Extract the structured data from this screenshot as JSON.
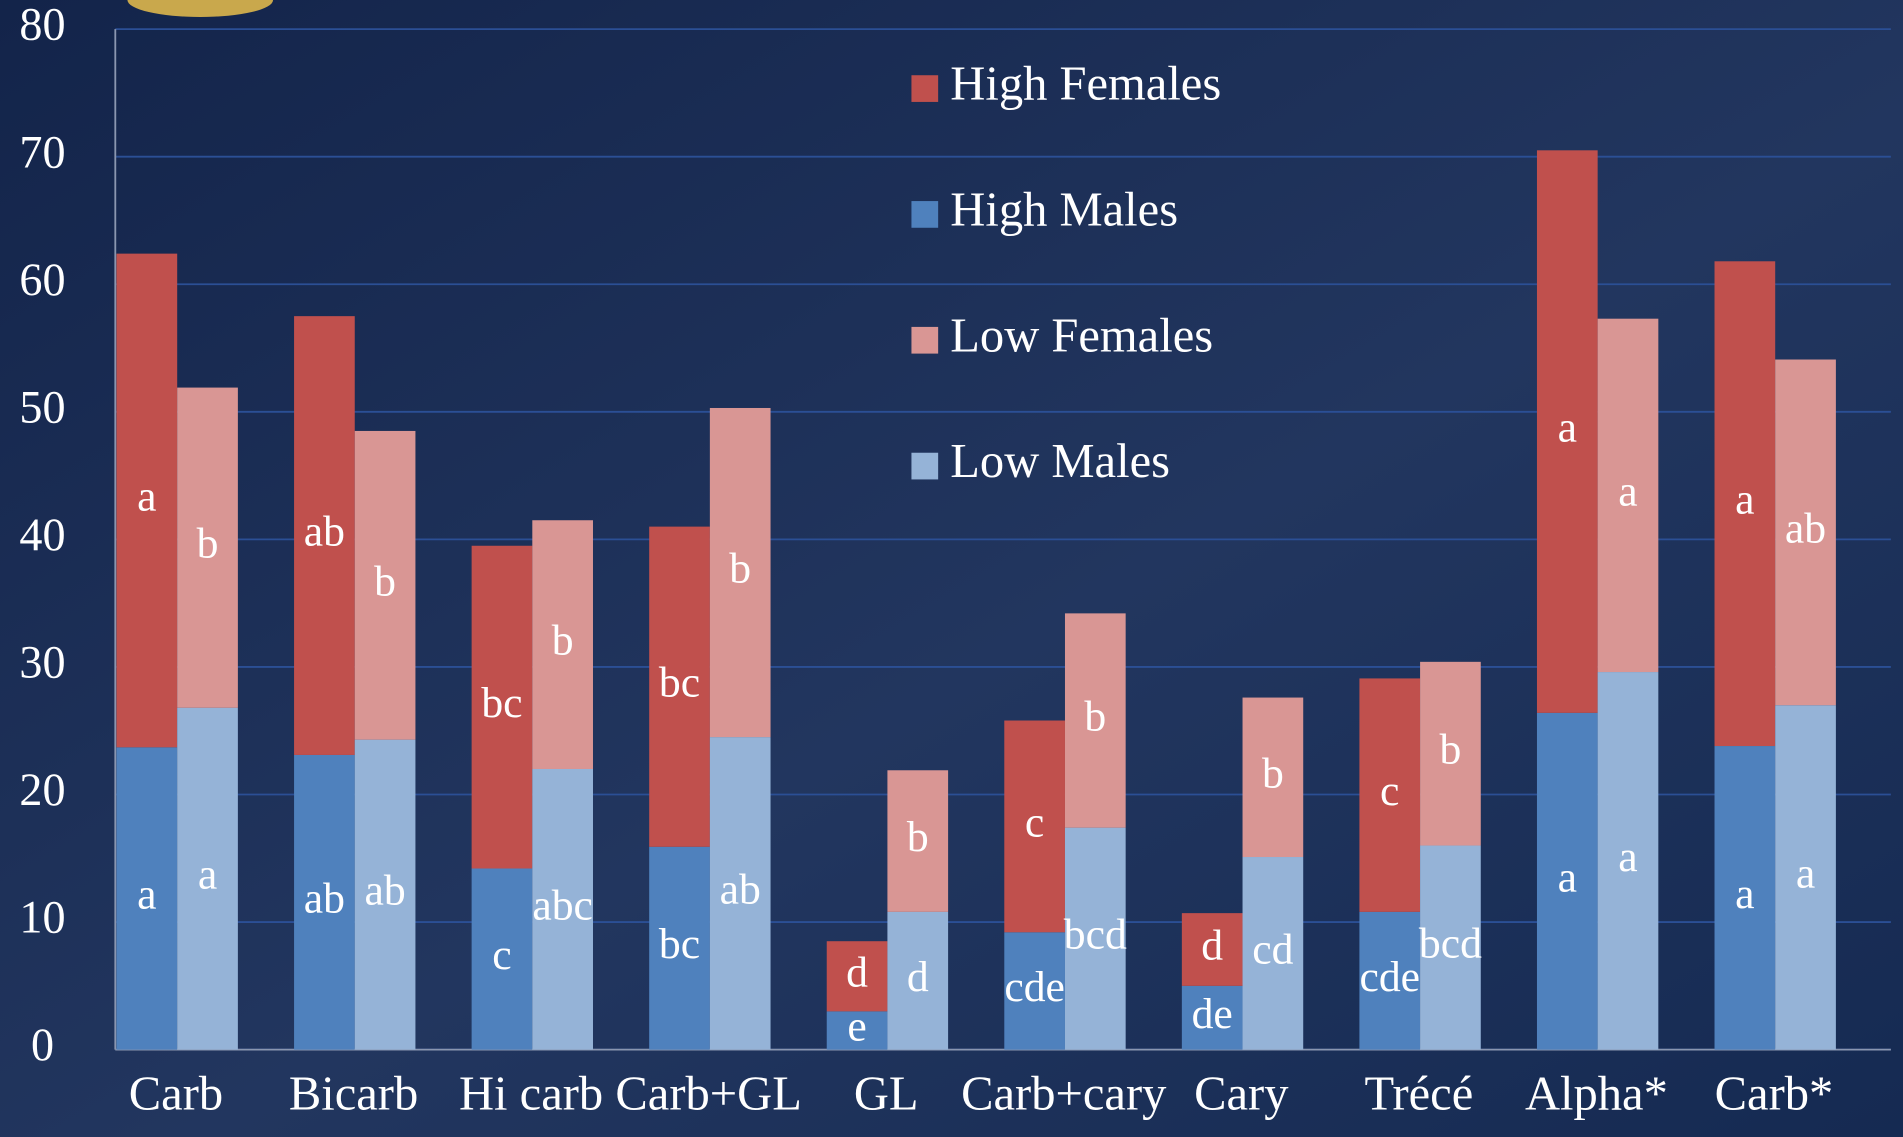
{
  "chart_data": {
    "type": "bar",
    "categories": [
      "Carb",
      "Bicarb",
      "Hi carb",
      "Carb+GL",
      "GL",
      "Carb+cary",
      "Cary",
      "Trécé",
      "Alpha*",
      "Carb*"
    ],
    "series": [
      {
        "name": "High Females",
        "color": "#c0504d",
        "values": [
          38.7,
          34.4,
          25.3,
          25.1,
          5.5,
          16.6,
          5.7,
          18.3,
          44.1,
          38.0
        ],
        "letters": [
          "a",
          "ab",
          "bc",
          "bc",
          "d",
          "c",
          "d",
          "c",
          "a",
          "a"
        ]
      },
      {
        "name": "High Males",
        "color": "#4f81bd",
        "values": [
          23.7,
          23.1,
          14.2,
          15.9,
          3.0,
          9.2,
          5.0,
          10.8,
          26.4,
          23.8
        ],
        "letters": [
          "a",
          "ab",
          "c",
          "bc",
          "e",
          "cde",
          "de",
          "cde",
          "a",
          "a"
        ]
      },
      {
        "name": "Low Females",
        "color": "#d99694",
        "values": [
          25.1,
          24.2,
          19.5,
          25.8,
          11.1,
          16.8,
          12.5,
          14.4,
          27.7,
          27.1
        ],
        "letters": [
          "b",
          "b",
          "b",
          "b",
          "b",
          "b",
          "b",
          "b",
          "a",
          "ab"
        ]
      },
      {
        "name": "Low Males",
        "color": "#95b3d7",
        "values": [
          26.8,
          24.3,
          22.0,
          24.5,
          10.8,
          17.4,
          15.1,
          16.0,
          29.6,
          27.0
        ],
        "letters": [
          "a",
          "ab",
          "abc",
          "ab",
          "d",
          "bcd",
          "cd",
          "bcd",
          "a",
          "a"
        ]
      }
    ],
    "ylim": [
      0,
      80
    ],
    "yticks": [
      0,
      10,
      20,
      30,
      40,
      50,
      60,
      70,
      80
    ],
    "grid": true
  }
}
